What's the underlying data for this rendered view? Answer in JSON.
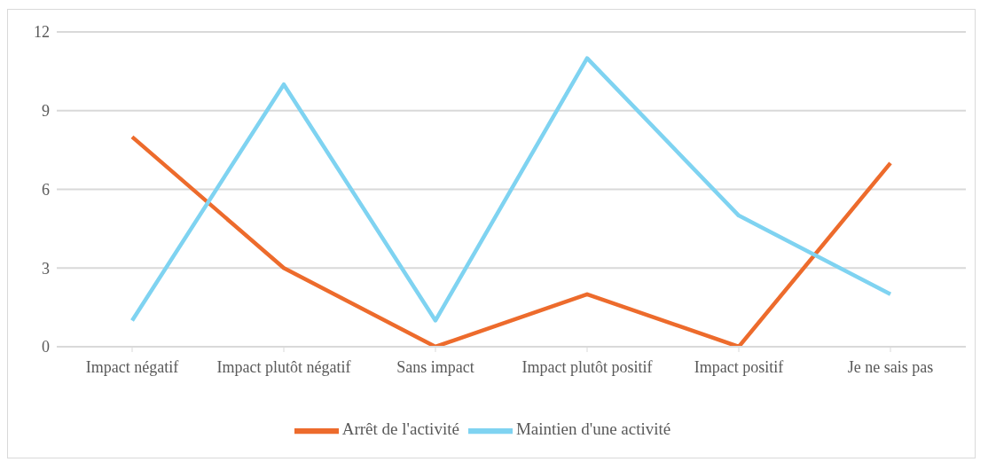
{
  "chart_data": {
    "type": "line",
    "categories": [
      "Impact négatif",
      "Impact plutôt négatif",
      "Sans impact",
      "Impact plutôt positif",
      "Impact positif",
      "Je ne sais pas"
    ],
    "series": [
      {
        "name": "Arrêt de l'activité",
        "color": "#ed6b2c",
        "values": [
          8,
          3,
          0,
          2,
          0,
          7
        ]
      },
      {
        "name": "Maintien d'une activité",
        "color": "#7fd3f1",
        "values": [
          1,
          10,
          1,
          11,
          5,
          2
        ]
      }
    ],
    "ylim": [
      0,
      12
    ],
    "yticks": [
      0,
      3,
      6,
      9,
      12
    ],
    "grid": "y",
    "legend": "bottom",
    "marker": "none",
    "line_style": "solid"
  }
}
